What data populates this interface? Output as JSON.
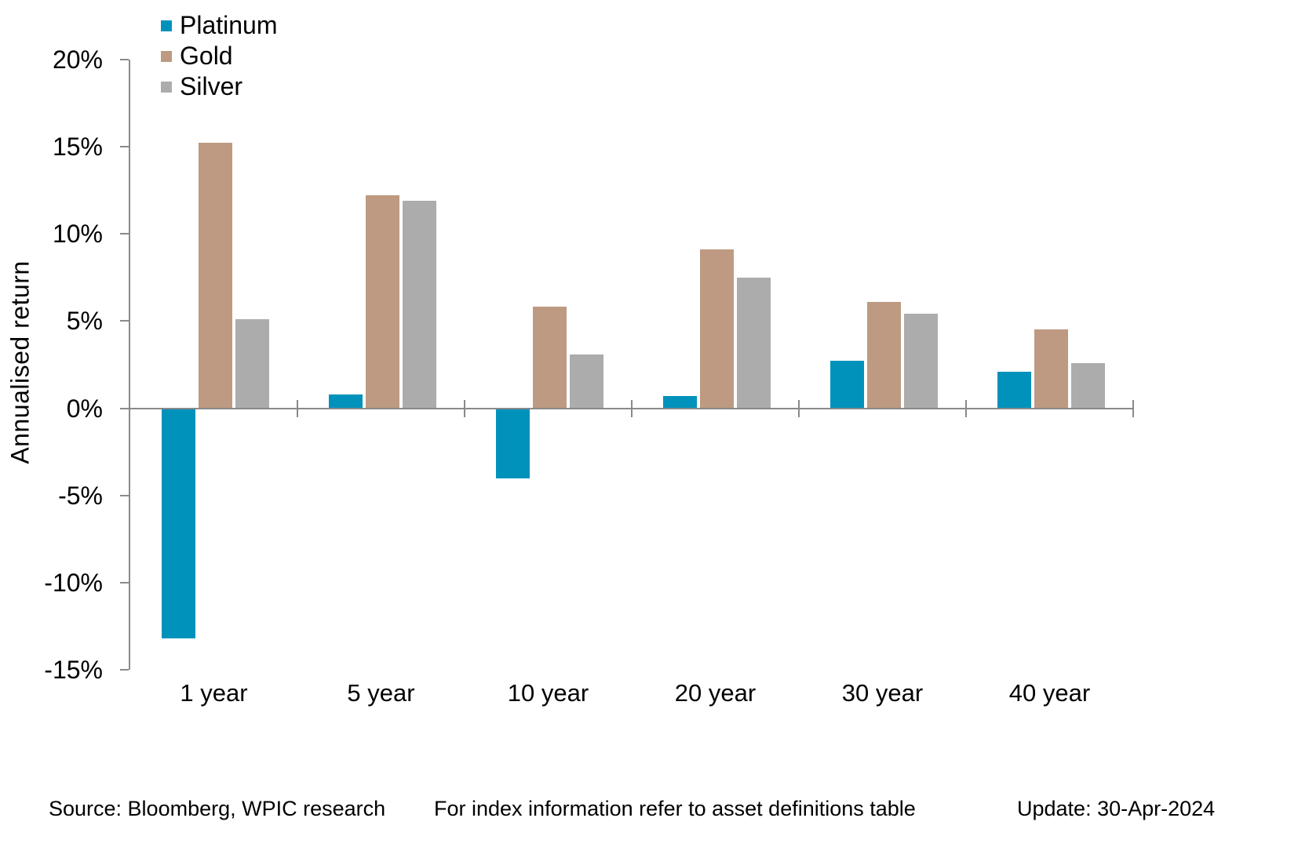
{
  "chart_data": {
    "type": "bar",
    "title": "",
    "categories": [
      "1 year",
      "5 year",
      "10 year",
      "20 year",
      "30 year",
      "40 year"
    ],
    "series": [
      {
        "name": "Platinum",
        "color": "#0092BB",
        "pattern": "solid",
        "values": [
          -13.2,
          0.8,
          -4.0,
          0.7,
          2.7,
          2.1
        ]
      },
      {
        "name": "Gold",
        "color": "#BD9A81",
        "pattern": "solid",
        "values": [
          15.2,
          12.2,
          5.8,
          9.1,
          6.1,
          4.5
        ]
      },
      {
        "name": "Silver",
        "color": "#ACACAC",
        "pattern": "dots",
        "values": [
          5.1,
          11.9,
          3.1,
          7.5,
          5.4,
          2.6
        ]
      }
    ],
    "xlabel": "",
    "ylabel": "Annualised return",
    "ylim": [
      -15,
      20
    ],
    "yticks": [
      {
        "label": "20%",
        "value": 20
      },
      {
        "label": "15%",
        "value": 15
      },
      {
        "label": "10%",
        "value": 10
      },
      {
        "label": "5%",
        "value": 5
      },
      {
        "label": "0%",
        "value": 0
      },
      {
        "label": "-5%",
        "value": -5
      },
      {
        "label": "-10%",
        "value": -10
      },
      {
        "label": "-15%",
        "value": -15
      }
    ],
    "grid": false,
    "legend_position": "top-left",
    "axis_color": "#8A8A8A"
  },
  "footer": {
    "source": "Source: Bloomberg, WPIC research",
    "note": "For index information refer to asset definitions table",
    "update": "Update: 30-Apr-2024"
  }
}
